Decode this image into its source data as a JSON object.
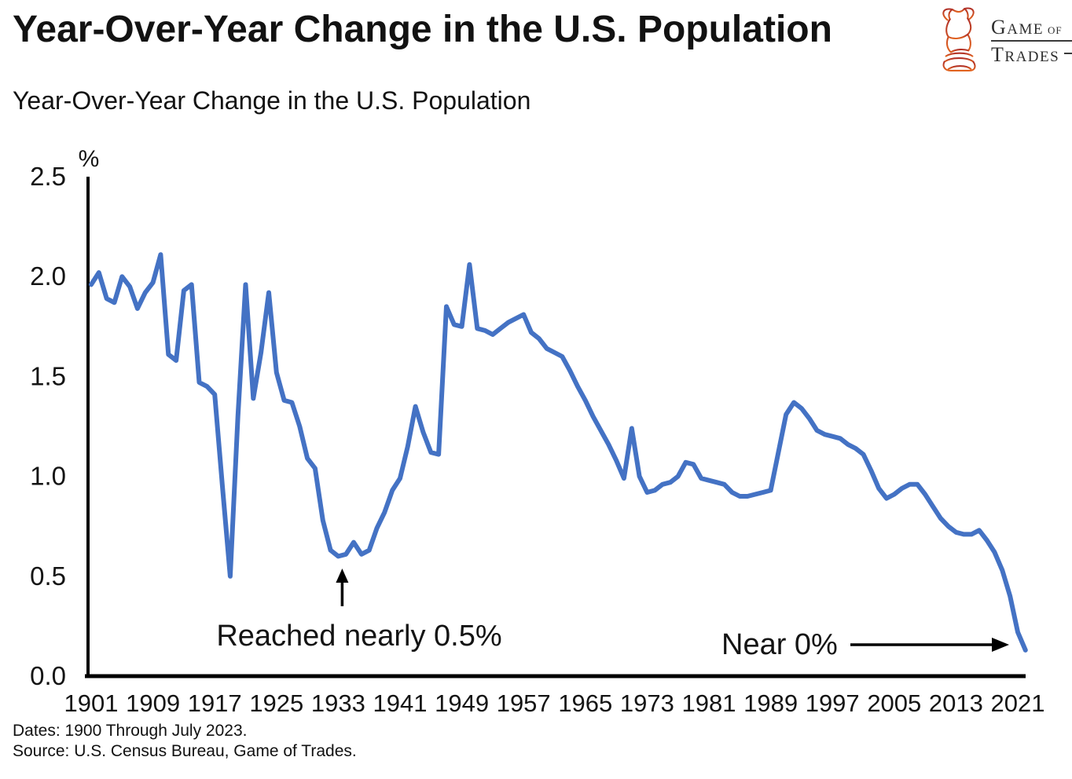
{
  "header": {
    "title": "Year-Over-Year Change in the U.S. Population",
    "logo": {
      "icon": "bull-icon",
      "game_g": "G",
      "game_rest": "AME",
      "of": "OF",
      "trades_t": "T",
      "trades_rest": "RADES"
    }
  },
  "subtitle": "Year-Over-Year Change in the U.S. Population",
  "footer": {
    "dates": "Dates: 1900 Through July 2023.",
    "source": "Source: U.S. Census Bureau, Game of Trades."
  },
  "chart_data": {
    "type": "line",
    "title": "Year-Over-Year Change in the U.S. Population",
    "xlabel": "",
    "ylabel": "%",
    "ylim": [
      0,
      2.5
    ],
    "xlim": [
      1901,
      2023
    ],
    "grid": false,
    "legend_position": "none",
    "line_color": "#4472c4",
    "axis_color": "#000000",
    "x_tick_years": [
      1901,
      1909,
      1917,
      1925,
      1933,
      1941,
      1949,
      1957,
      1965,
      1973,
      1981,
      1989,
      1997,
      2005,
      2013,
      2021
    ],
    "y_ticks": [
      0.0,
      0.5,
      1.0,
      1.5,
      2.0,
      2.5
    ],
    "series": [
      {
        "name": "Year-over-year change in U.S. population (%)",
        "start_year": 1901,
        "interval_years": 1,
        "values": [
          1.96,
          2.02,
          1.89,
          1.87,
          2.0,
          1.95,
          1.84,
          1.92,
          1.97,
          2.11,
          1.61,
          1.58,
          1.93,
          1.96,
          1.47,
          1.45,
          1.41,
          0.95,
          0.5,
          1.3,
          1.96,
          1.39,
          1.62,
          1.92,
          1.52,
          1.38,
          1.37,
          1.25,
          1.09,
          1.04,
          0.78,
          0.63,
          0.6,
          0.61,
          0.67,
          0.61,
          0.63,
          0.74,
          0.82,
          0.93,
          0.99,
          1.15,
          1.35,
          1.22,
          1.12,
          1.11,
          1.85,
          1.76,
          1.75,
          2.06,
          1.74,
          1.73,
          1.71,
          1.74,
          1.77,
          1.79,
          1.81,
          1.72,
          1.69,
          1.64,
          1.62,
          1.6,
          1.53,
          1.45,
          1.38,
          1.3,
          1.23,
          1.16,
          1.08,
          0.99,
          1.24,
          1.0,
          0.92,
          0.93,
          0.96,
          0.97,
          1.0,
          1.07,
          1.06,
          0.99,
          0.98,
          0.97,
          0.96,
          0.92,
          0.9,
          0.9,
          0.91,
          0.92,
          0.93,
          1.12,
          1.31,
          1.37,
          1.34,
          1.29,
          1.23,
          1.21,
          1.2,
          1.19,
          1.16,
          1.14,
          1.11,
          1.03,
          0.94,
          0.89,
          0.91,
          0.94,
          0.96,
          0.96,
          0.91,
          0.85,
          0.79,
          0.75,
          0.72,
          0.71,
          0.71,
          0.73,
          0.68,
          0.62,
          0.53,
          0.4,
          0.22,
          0.13
        ]
      }
    ],
    "annotations": [
      {
        "text": "Reached nearly 0.5%",
        "target_year": 1933,
        "target_value": 0.6,
        "arrow": "up"
      },
      {
        "text": "Near 0%",
        "target_year": 2022,
        "target_value": 0.13,
        "arrow": "right"
      }
    ]
  }
}
